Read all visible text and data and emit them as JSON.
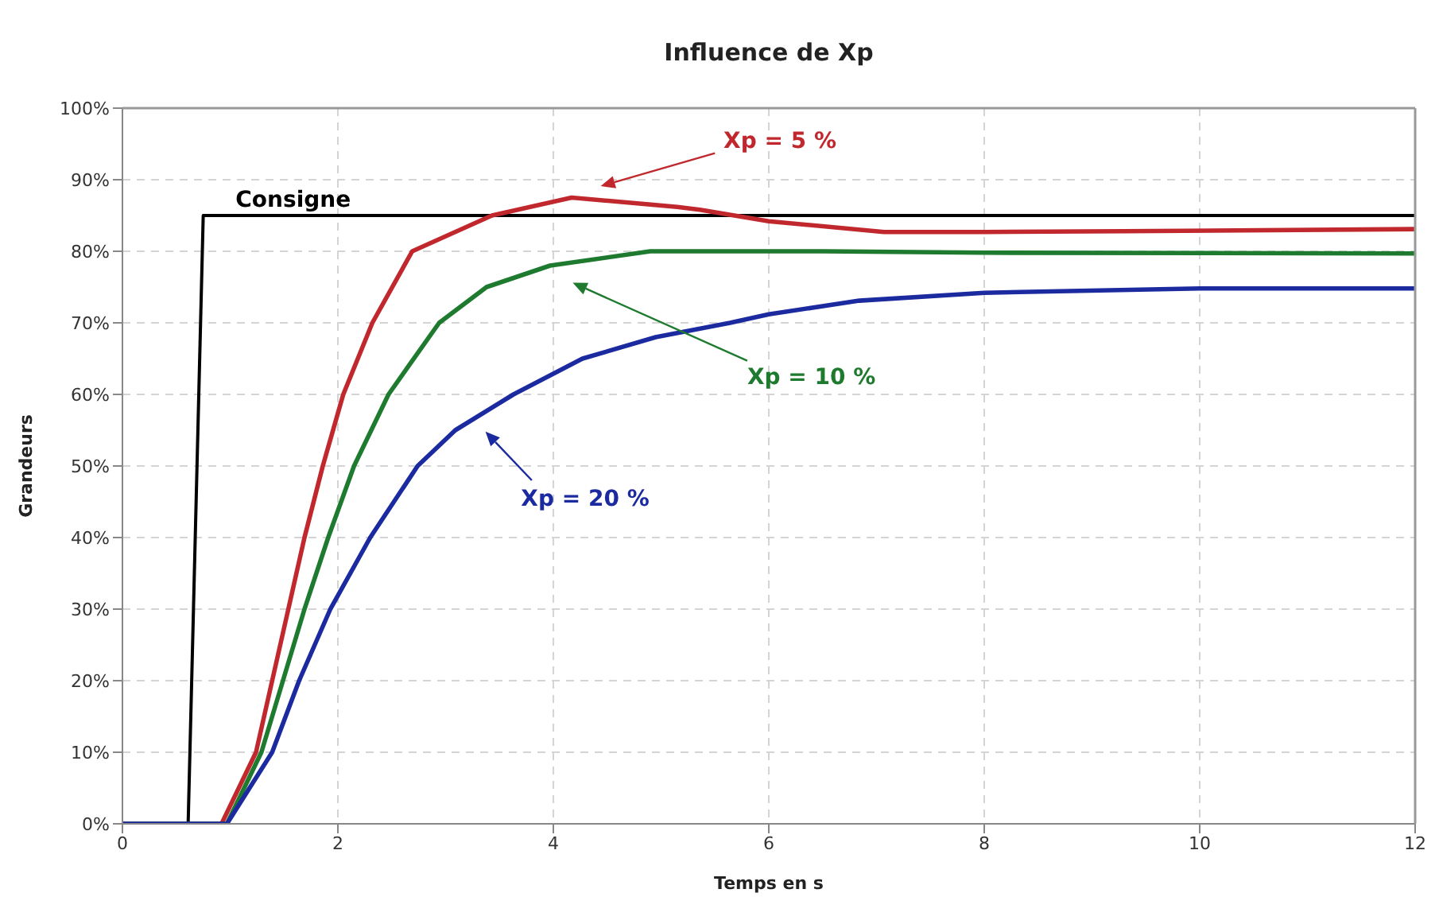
{
  "chart_data": {
    "type": "line",
    "title": "Influence de Xp",
    "xlabel": "Temps en s",
    "ylabel": "Grandeurs",
    "xlim": [
      0,
      12
    ],
    "xticks": [
      0,
      2,
      4,
      6,
      8,
      10,
      12
    ],
    "ylim": [
      0,
      100
    ],
    "yticks": [
      {
        "value": 0,
        "label": "0%"
      },
      {
        "value": 10,
        "label": "10%"
      },
      {
        "value": 20,
        "label": "20%"
      },
      {
        "value": 30,
        "label": "30%"
      },
      {
        "value": 40,
        "label": "40%"
      },
      {
        "value": 50,
        "label": "50%"
      },
      {
        "value": 60,
        "label": "60%"
      },
      {
        "value": 70,
        "label": "70%"
      },
      {
        "value": 80,
        "label": "80%"
      },
      {
        "value": 90,
        "label": "90%"
      },
      {
        "value": 100,
        "label": "100%"
      }
    ],
    "grid": true,
    "marker": "none",
    "line_style": "solid",
    "series": [
      {
        "name": "Consigne",
        "color": "#000000",
        "x": [
          0,
          0.61,
          0.75,
          12
        ],
        "values": [
          0,
          0,
          85,
          85
        ]
      },
      {
        "name": "Xp = 5 %",
        "color": "#c0282e",
        "x": [
          0,
          0.92,
          1.24,
          1.39,
          1.54,
          1.69,
          1.86,
          2.05,
          2.32,
          2.69,
          3.43,
          4.17,
          5.15,
          5.36,
          6,
          7.07,
          8,
          9.3,
          12
        ],
        "values": [
          0,
          0,
          10,
          20,
          30,
          40,
          50,
          60,
          70,
          80,
          85,
          87.5,
          86.2,
          85.8,
          84.2,
          82.7,
          82.7,
          82.8,
          83.1
        ]
      },
      {
        "name": "Xp = 10 %",
        "color": "#1e7a2e",
        "x": [
          0,
          0.97,
          1.29,
          1.49,
          1.69,
          1.91,
          2.15,
          2.47,
          2.94,
          3.38,
          3.97,
          4.9,
          6.5,
          8,
          12
        ],
        "values": [
          0,
          0,
          10,
          20,
          30,
          40,
          50,
          60,
          70,
          75,
          78,
          80,
          80,
          79.8,
          79.7
        ]
      },
      {
        "name": "Xp = 20 %",
        "color": "#1c2aa0",
        "x": [
          0,
          0.97,
          1.39,
          1.64,
          1.93,
          2.3,
          2.74,
          3.09,
          3.63,
          4.27,
          4.95,
          5.64,
          6,
          6.84,
          8,
          10,
          12
        ],
        "values": [
          0,
          0,
          10,
          20,
          30,
          40,
          50,
          55,
          60,
          65,
          68,
          70,
          71.2,
          73.1,
          74.2,
          74.8,
          74.8
        ]
      }
    ]
  }
}
